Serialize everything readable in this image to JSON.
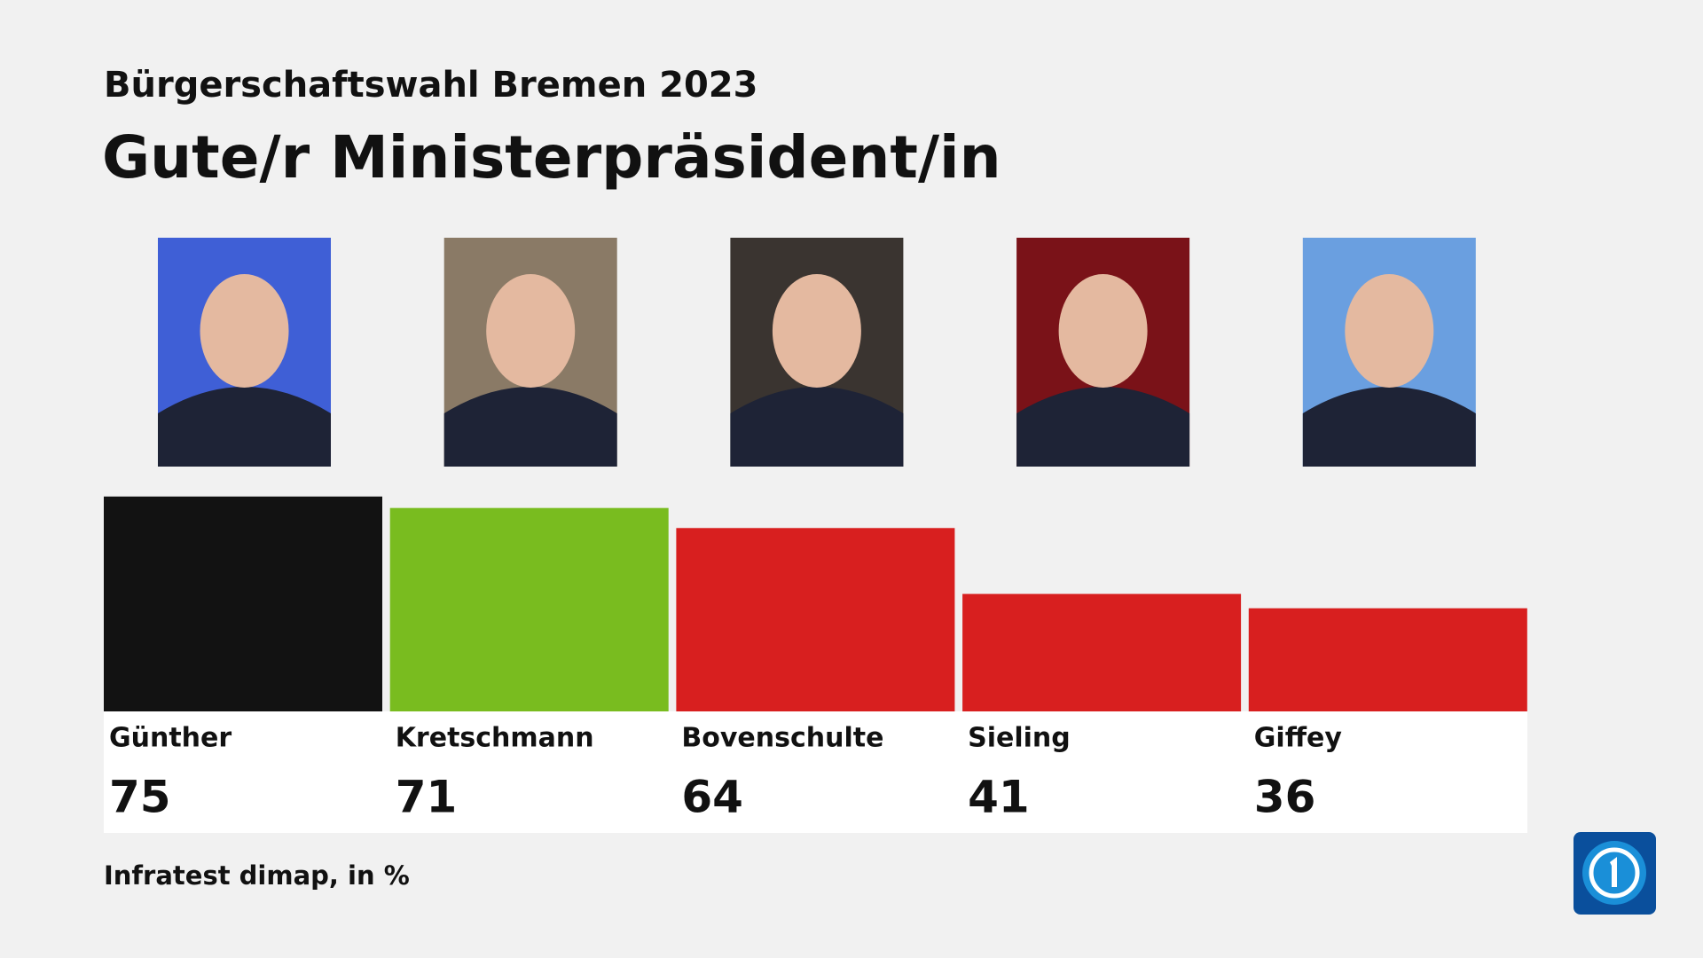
{
  "chart_data": {
    "type": "bar",
    "subtitle": "Bürgerschaftswahl Bremen 2023",
    "title": "Gute/r Ministerpräsident/in",
    "categories": [
      "Günther",
      "Kretschmann",
      "Bovenschulte",
      "Sieling",
      "Giffey"
    ],
    "values": [
      75,
      71,
      64,
      41,
      36
    ],
    "colors": [
      "#121212",
      "#79bc1f",
      "#d81f1f",
      "#d81f1f",
      "#d81f1f"
    ],
    "source": "Infratest dimap, in %"
  }
}
